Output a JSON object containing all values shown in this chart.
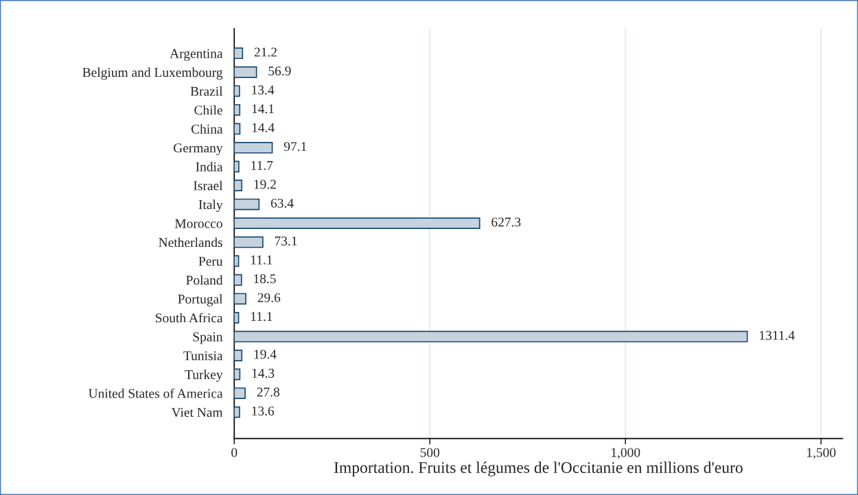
{
  "chart_data": {
    "type": "bar",
    "orientation": "horizontal",
    "xlabel": "Importation. Fruits et légumes de l'Occitanie en millions d'euro",
    "categories": [
      "Argentina",
      "Belgium and Luxembourg",
      "Brazil",
      "Chile",
      "China",
      "Germany",
      "India",
      "Israel",
      "Italy",
      "Morocco",
      "Netherlands",
      "Peru",
      "Poland",
      "Portugal",
      "South Africa",
      "Spain",
      "Tunisia",
      "Turkey",
      "United States of America",
      "Viet Nam"
    ],
    "values": [
      21.2,
      56.9,
      13.4,
      14.1,
      14.4,
      97.1,
      11.7,
      19.2,
      63.4,
      627.3,
      73.1,
      11.1,
      18.5,
      29.6,
      11.1,
      1311.4,
      19.4,
      14.3,
      27.8,
      13.6
    ],
    "color": "#c6d3df",
    "data_labels": true,
    "xlim": [
      0,
      1555
    ],
    "xticks": [
      0,
      500,
      {
        "value": 1000,
        "label": "1,000"
      },
      {
        "value": 1500,
        "label": "1,500"
      }
    ],
    "grid": "x",
    "legend": false
  }
}
